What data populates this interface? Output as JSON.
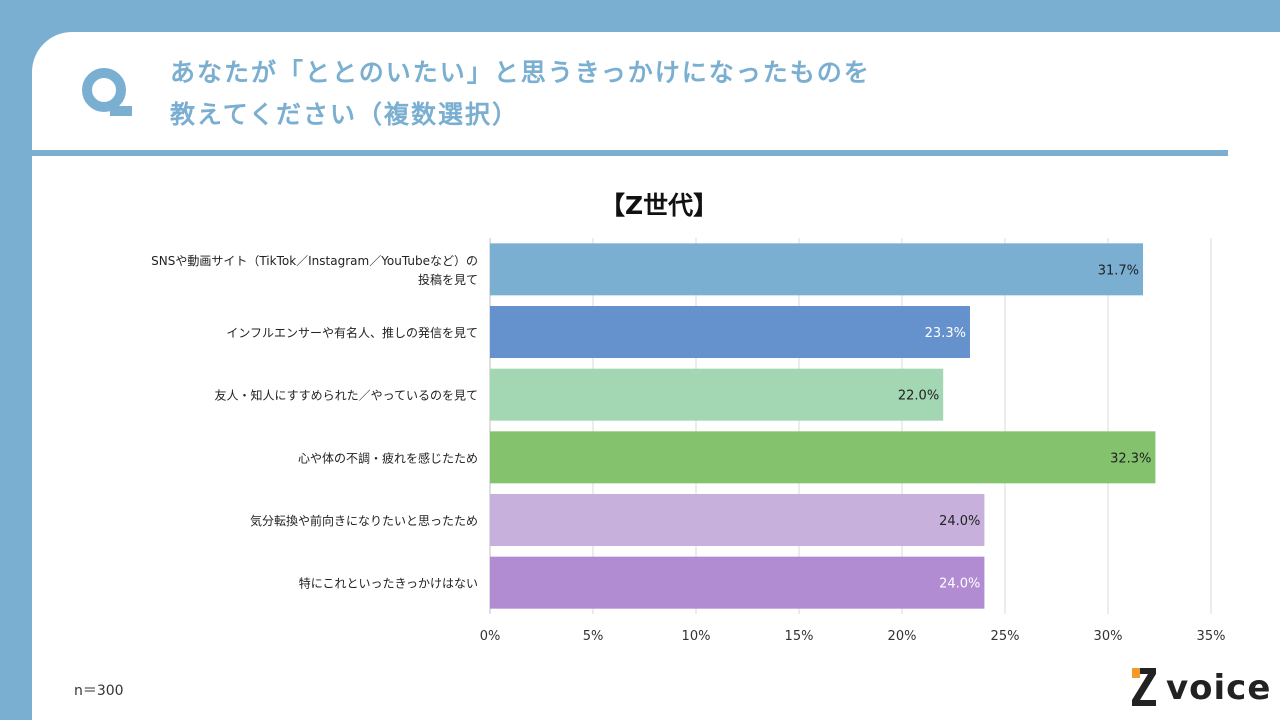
{
  "question": {
    "line1": "あなたが「ととのいたい」と思うきっかけになったものを",
    "line2": "教えてください（複数選択）"
  },
  "chart_data": {
    "type": "bar",
    "orientation": "horizontal",
    "title": "【Z世代】",
    "categories": [
      [
        "SNSや動画サイト（TikTok／Instagram／YouTubeなど）の",
        "投稿を見て"
      ],
      [
        "インフルエンサーや有名人、推しの発信を見て"
      ],
      [
        "友人・知人にすすめられた／やっているのを見て"
      ],
      [
        "心や体の不調・疲れを感じたため"
      ],
      [
        "気分転換や前向きになりたいと思ったため"
      ],
      [
        "特にこれといったきっかけはない"
      ]
    ],
    "values": [
      31.7,
      23.3,
      22.0,
      32.3,
      24.0,
      24.0
    ],
    "value_labels": [
      "31.7%",
      "23.3%",
      "22.0%",
      "32.3%",
      "24.0%",
      "24.0%"
    ],
    "bar_colors": [
      "#7aafd2",
      "#6591cc",
      "#a3d6b3",
      "#84c26e",
      "#c7b1dc",
      "#b18cd2"
    ],
    "label_colors": [
      "#222222",
      "#ffffff",
      "#222222",
      "#222222",
      "#222222",
      "#ffffff"
    ],
    "xlim": [
      0,
      35
    ],
    "xticks": [
      0,
      5,
      10,
      15,
      20,
      25,
      30,
      35
    ],
    "xtick_labels": [
      "0%",
      "5%",
      "10%",
      "15%",
      "20%",
      "25%",
      "30%",
      "35%"
    ],
    "grid": true
  },
  "footer": {
    "n_label": "n＝300",
    "logo_text": "voice"
  },
  "colors": {
    "accent": "#7aafd1",
    "logo_orange": "#f39a2b"
  }
}
